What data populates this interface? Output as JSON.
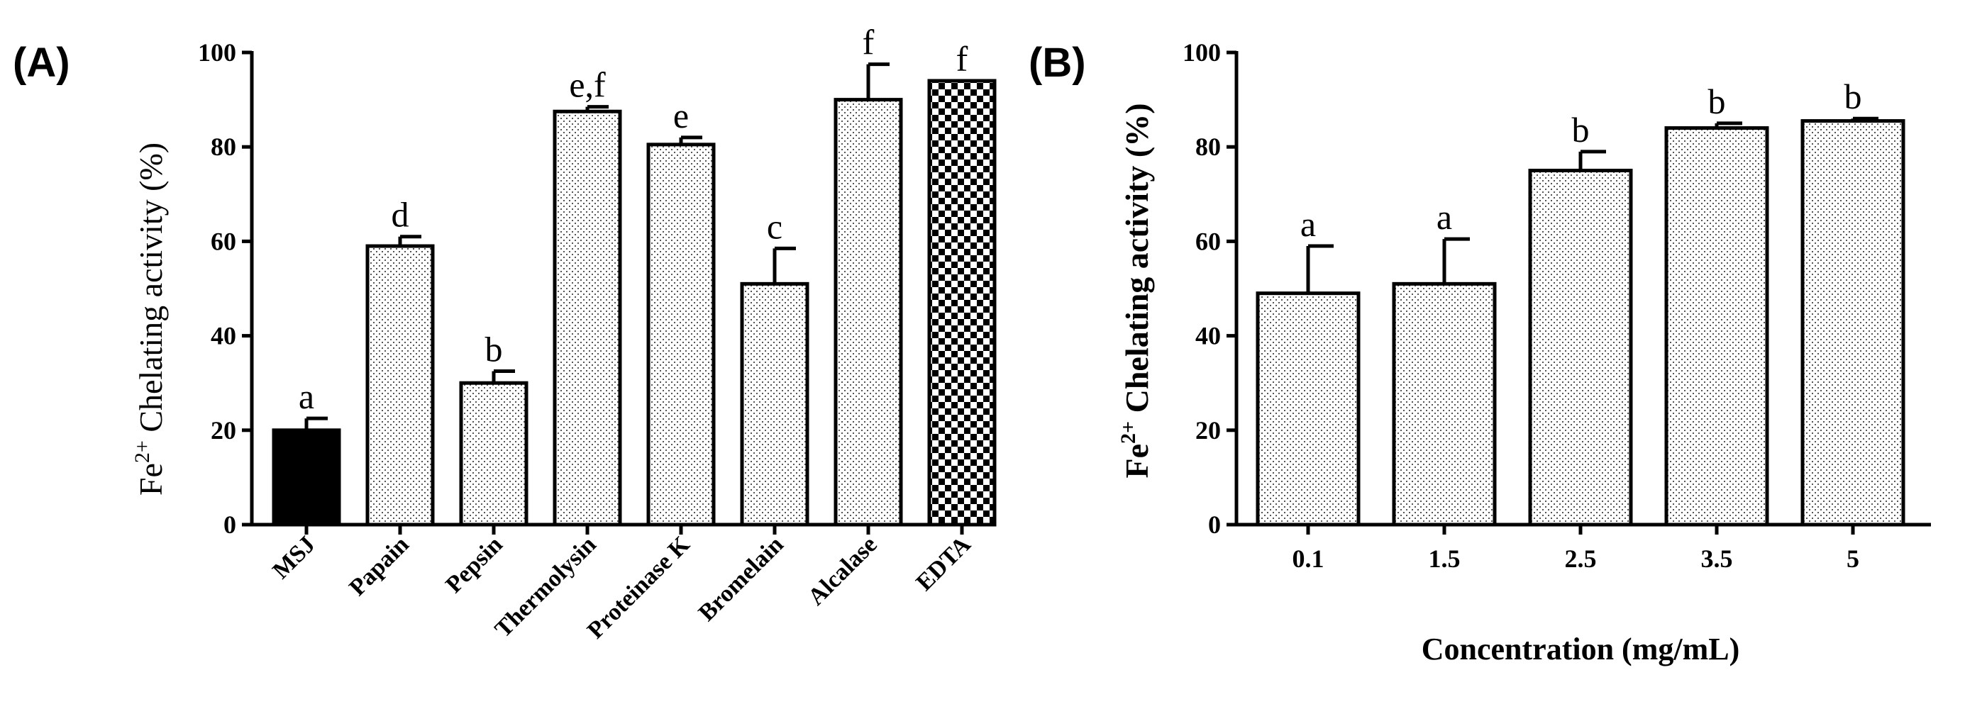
{
  "chart_data": [
    {
      "panel_label": "(A)",
      "type": "bar",
      "ylabel_main": "Fe",
      "ylabel_sup": "2+",
      "ylabel_rest": " Chelating activity (%)",
      "xlabel": "",
      "ylim": [
        0,
        100
      ],
      "yticks": [
        "0",
        "20",
        "40",
        "60",
        "80",
        "100"
      ],
      "categories": [
        "MSJ",
        "Papain",
        "Pepsin",
        "Thermolysin",
        "Proteinase K",
        "Bromelain",
        "Alcalase",
        "EDTA"
      ],
      "values": [
        20,
        59,
        30,
        87.5,
        80.5,
        51,
        90,
        94
      ],
      "errors": [
        2.5,
        2,
        2.5,
        1,
        1.5,
        7.5,
        7.5,
        0
      ],
      "significance": [
        "a",
        "d",
        "b",
        "e,f",
        "e",
        "c",
        "f",
        "f"
      ],
      "fills": [
        "solid",
        "dots",
        "dots",
        "dots",
        "dots",
        "dots",
        "dots",
        "checker"
      ]
    },
    {
      "panel_label": "(B)",
      "type": "bar",
      "ylabel_main": "Fe",
      "ylabel_sup": "2+",
      "ylabel_rest": " Chelating activity (%)",
      "xlabel": "Concentration (mg/mL)",
      "ylim": [
        0,
        100
      ],
      "yticks": [
        "0",
        "20",
        "40",
        "60",
        "80",
        "100"
      ],
      "categories": [
        "0.1",
        "1.5",
        "2.5",
        "3.5",
        "5"
      ],
      "values": [
        49,
        51,
        75,
        84,
        85.5
      ],
      "errors": [
        10,
        9.5,
        4,
        1,
        0.5
      ],
      "significance": [
        "a",
        "a",
        "b",
        "b",
        "b"
      ],
      "fills": [
        "dots",
        "dots",
        "dots",
        "dots",
        "dots"
      ]
    }
  ]
}
